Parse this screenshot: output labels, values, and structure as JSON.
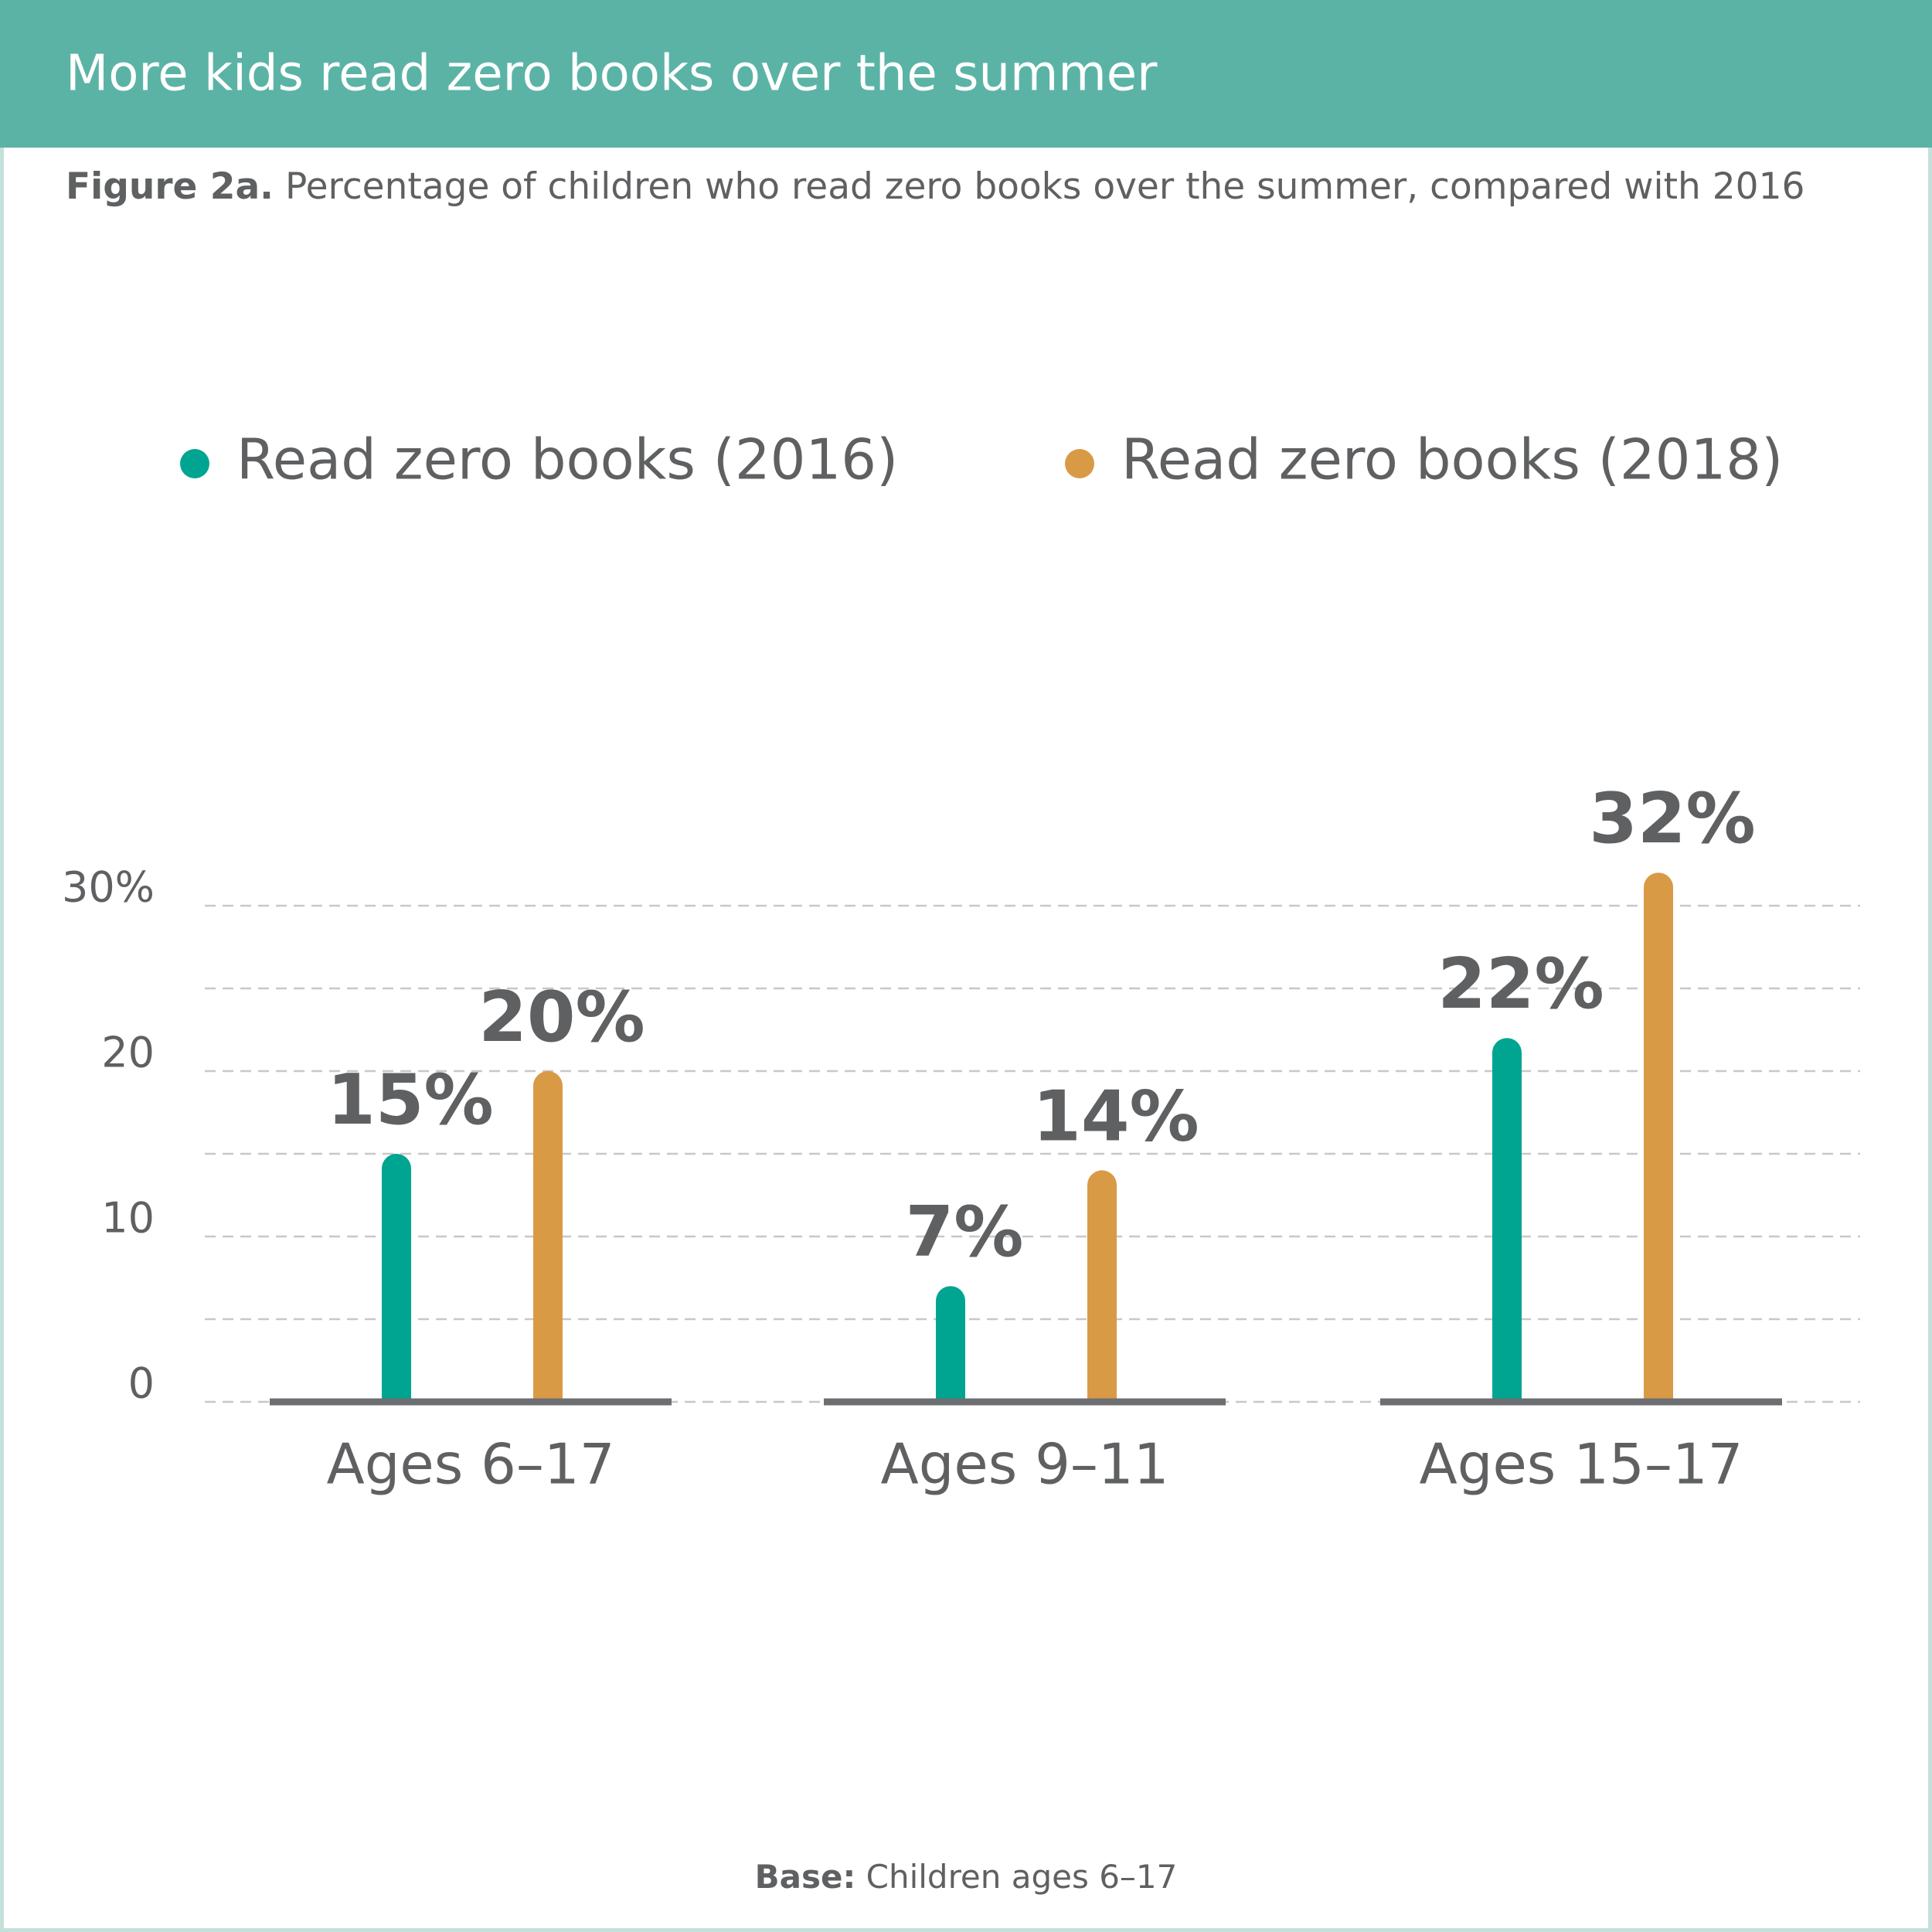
{
  "chart_data": {
    "type": "bar",
    "title": "More kids read zero books over the summer",
    "subtitle_label": "Figure 2a.",
    "subtitle": "Percentage of children who read zero books over the summer, compared with 2016",
    "note_label": "Base:",
    "note": "Children ages 6–17",
    "categories": [
      "Ages 6–17",
      "Ages 9–11",
      "Ages 15–17"
    ],
    "series": [
      {
        "name": "Read zero books (2016)",
        "color": "#00a591",
        "values": [
          15,
          7,
          22
        ],
        "value_labels": [
          "15%",
          "7%",
          "22%"
        ]
      },
      {
        "name": "Read zero books (2018)",
        "color": "#d99a46",
        "values": [
          20,
          14,
          32
        ],
        "value_labels": [
          "20%",
          "14%",
          "32%"
        ]
      }
    ],
    "ylim": [
      0,
      30
    ],
    "yticks": [
      0,
      10,
      20,
      {
        "value": 30,
        "label": "30%"
      }
    ],
    "minor_yticks": [
      5,
      15,
      25
    ],
    "grid": true
  }
}
